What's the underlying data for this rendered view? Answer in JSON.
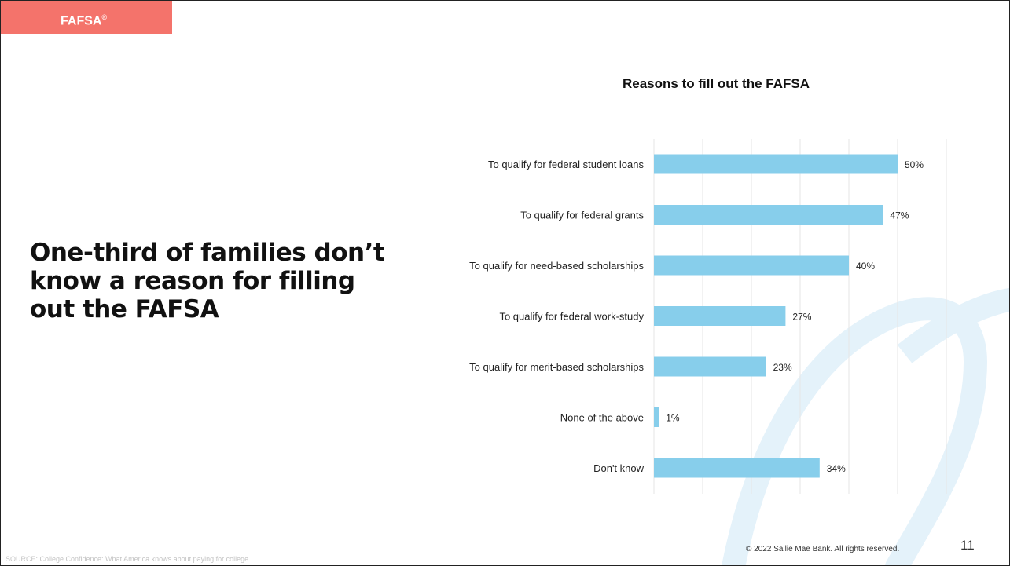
{
  "header": {
    "tag_label": "FAFSA",
    "tag_mark": "®"
  },
  "headline": "One-third of families don’t know a reason for filling out the FAFSA",
  "footer": {
    "source": "SOURCE: College Confidence: What America knows about paying for college.",
    "copyright": "© 2022 Sallie Mae Bank. All rights reserved.",
    "page_number": "11"
  },
  "colors": {
    "bar": "#87ceeb",
    "tag": "#f4736b",
    "deco_arc": "#e4f2fa",
    "grid": "#e6e6e6"
  },
  "chart_data": {
    "type": "bar",
    "orientation": "horizontal",
    "title": "Reasons to fill out the FAFSA",
    "categories": [
      "To qualify for federal student loans",
      "To qualify for federal grants",
      "To qualify for need-based scholarships",
      "To qualify for federal work-study",
      "To qualify for merit-based scholarships",
      "None of the above",
      "Don't know"
    ],
    "values": [
      50,
      47,
      40,
      27,
      23,
      1,
      34
    ],
    "value_labels": [
      "50%",
      "47%",
      "40%",
      "27%",
      "23%",
      "1%",
      "34%"
    ],
    "xlim": [
      0,
      60
    ],
    "grid": true,
    "xlabel": "",
    "ylabel": ""
  }
}
